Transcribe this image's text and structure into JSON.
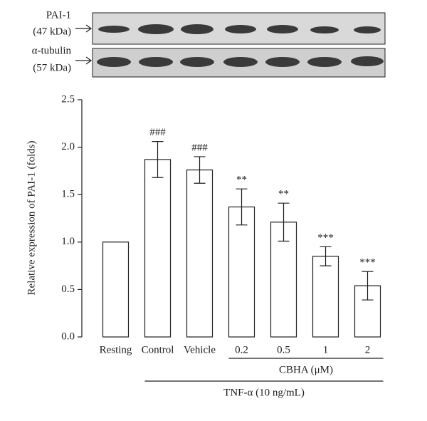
{
  "blot": {
    "rows": [
      {
        "label": "PAI-1",
        "sublabel": "(47 kDa)"
      },
      {
        "label": "α-tubulin",
        "sublabel": "(57 kDa)"
      }
    ]
  },
  "chart_data": {
    "type": "bar",
    "y_label": "Relative expression of PAI-1 (folds)",
    "categories": [
      "Resting",
      "Control",
      "Vehicle",
      "0.2",
      "0.5",
      "1",
      "2"
    ],
    "values": [
      1.0,
      1.87,
      1.76,
      1.37,
      1.21,
      0.85,
      0.54
    ],
    "errors": [
      null,
      0.19,
      0.14,
      0.19,
      0.2,
      0.1,
      0.15
    ],
    "annotations": [
      null,
      "###",
      "###",
      "**",
      "**",
      "***",
      "***"
    ],
    "color": "#ffffff",
    "ylim": [
      0,
      2.5
    ],
    "yticks": [
      {
        "value": 0,
        "label": "0.0"
      },
      0.5,
      {
        "value": 1,
        "label": "1.0"
      },
      1.5,
      {
        "value": 2,
        "label": "2.0"
      },
      2.5
    ],
    "groups": [
      {
        "label": "CBHA (μM)",
        "span": [
          3,
          6
        ]
      },
      {
        "label": "TNF-α (10 ng/mL)",
        "span": [
          1,
          6
        ]
      }
    ]
  }
}
